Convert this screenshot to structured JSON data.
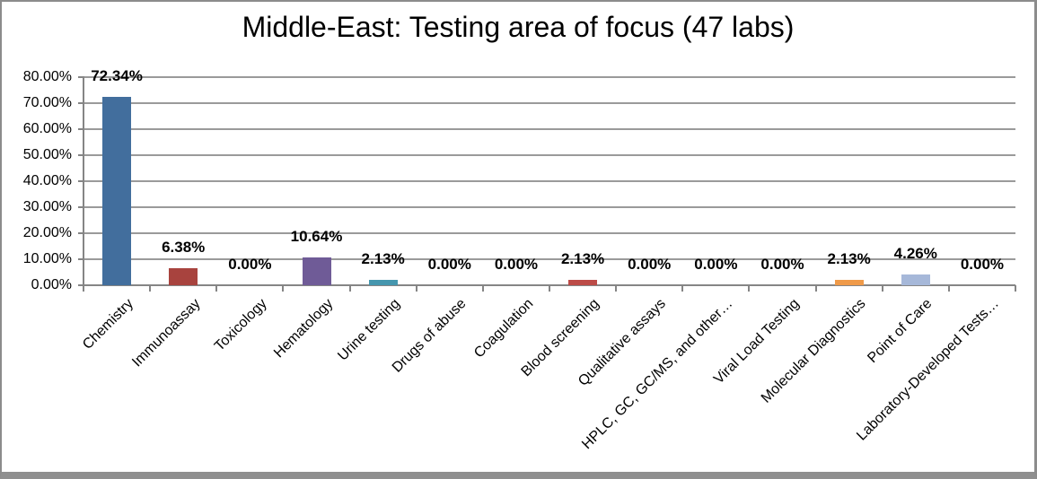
{
  "window": {
    "background": "#ffffff",
    "frame_color": "#8c8c8c",
    "bottom_bar_color": "#8f8f8f"
  },
  "chart_data": {
    "type": "bar",
    "title": "Middle-East: Testing area of focus (47 labs)",
    "categories": [
      "Chemistry",
      "Immunoassay",
      "Toxicology",
      "Hematology",
      "Urine testing",
      "Drugs of abuse",
      "Coagulation",
      "Blood screening",
      "Qualitative assays",
      "HPLC, GC, GC/MS, and other…",
      "Viral Load Testing",
      "Molecular Diagnostics",
      "Point of Care",
      "Laboratory-Developed Tests…"
    ],
    "values": [
      72.34,
      6.38,
      0,
      10.64,
      2.13,
      0,
      0,
      2.13,
      0,
      0,
      0,
      2.13,
      4.26,
      0
    ],
    "value_labels": [
      "72.34%",
      "6.38%",
      "0.00%",
      "10.64%",
      "2.13%",
      "0.00%",
      "0.00%",
      "2.13%",
      "0.00%",
      "0.00%",
      "0.00%",
      "2.13%",
      "4.26%",
      "0.00%"
    ],
    "bar_colors": [
      "#426e9d",
      "#a8433e",
      null,
      "#6f5b97",
      "#4596ae",
      null,
      null,
      "#bc4b47",
      null,
      null,
      null,
      "#ef9a49",
      "#a6b8d9",
      null
    ],
    "yticks": [
      {
        "label": "80.00%",
        "value": 80
      },
      {
        "label": "70.00%",
        "value": 70
      },
      {
        "label": "60.00%",
        "value": 60
      },
      {
        "label": "50.00%",
        "value": 50
      },
      {
        "label": "40.00%",
        "value": 40
      },
      {
        "label": "30.00%",
        "value": 30
      },
      {
        "label": "20.00%",
        "value": 20
      },
      {
        "label": "10.00%",
        "value": 10
      },
      {
        "label": "0.00%",
        "value": 0
      }
    ],
    "ylim": [
      0,
      80
    ],
    "grid": true,
    "legend": "none",
    "gridline_color": "#9a9a9a",
    "axis_color": "#858585",
    "text_color": "#000000"
  }
}
